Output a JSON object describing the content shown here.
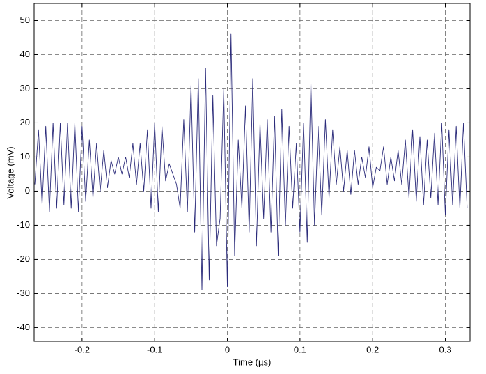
{
  "chart_data": {
    "type": "line",
    "xlabel": "Time (µs)",
    "ylabel": "Voltage (mV)",
    "x": [
      -0.265,
      -0.26,
      -0.255,
      -0.25,
      -0.245,
      -0.24,
      -0.235,
      -0.23,
      -0.225,
      -0.22,
      -0.215,
      -0.21,
      -0.205,
      -0.2,
      -0.195,
      -0.19,
      -0.185,
      -0.18,
      -0.175,
      -0.17,
      -0.165,
      -0.16,
      -0.155,
      -0.15,
      -0.145,
      -0.14,
      -0.135,
      -0.13,
      -0.125,
      -0.12,
      -0.115,
      -0.11,
      -0.105,
      -0.1,
      -0.095,
      -0.09,
      -0.085,
      -0.08,
      -0.075,
      -0.07,
      -0.065,
      -0.06,
      -0.055,
      -0.05,
      -0.045,
      -0.04,
      -0.035,
      -0.03,
      -0.025,
      -0.02,
      -0.015,
      -0.01,
      -0.005,
      0,
      0.005,
      0.01,
      0.015,
      0.02,
      0.025,
      0.03,
      0.035,
      0.04,
      0.045,
      0.05,
      0.055,
      0.06,
      0.065,
      0.07,
      0.075,
      0.08,
      0.085,
      0.09,
      0.095,
      0.1,
      0.105,
      0.11,
      0.115,
      0.12,
      0.125,
      0.13,
      0.135,
      0.14,
      0.145,
      0.15,
      0.155,
      0.16,
      0.165,
      0.17,
      0.175,
      0.18,
      0.185,
      0.19,
      0.195,
      0.2,
      0.205,
      0.21,
      0.215,
      0.22,
      0.225,
      0.23,
      0.235,
      0.24,
      0.245,
      0.25,
      0.255,
      0.26,
      0.265,
      0.27,
      0.275,
      0.28,
      0.285,
      0.29,
      0.295,
      0.3,
      0.305,
      0.31,
      0.315,
      0.32,
      0.325,
      0.33
    ],
    "series": [
      {
        "name": "Voltage",
        "color": "#2b2b7a",
        "values": [
          2,
          18,
          -4,
          19,
          -6,
          20,
          -5,
          20,
          -4,
          20,
          -5,
          20,
          -6,
          19,
          -3,
          15,
          -2,
          14,
          0,
          12,
          1,
          9,
          5,
          10,
          5,
          10,
          4,
          14,
          2,
          14,
          0,
          18,
          -5,
          20,
          -6,
          19,
          3,
          8,
          5,
          2,
          -5,
          21,
          -6,
          31,
          -12,
          33,
          -29,
          36,
          -26,
          28,
          -16,
          -8,
          30,
          -28,
          46,
          -19,
          15,
          -5,
          25,
          -12,
          33,
          -16,
          20,
          -8,
          21,
          -12,
          22,
          -19,
          24,
          -10,
          19,
          -5,
          14,
          -12,
          20,
          -15,
          32,
          -10,
          19,
          -7,
          21,
          -2,
          18,
          2,
          13,
          0,
          12,
          -1,
          12,
          2,
          10,
          4,
          13,
          1,
          7,
          6,
          13,
          2,
          10,
          3,
          12,
          2,
          15,
          -2,
          18,
          -3,
          16,
          -4,
          15,
          -2,
          17,
          -4,
          20,
          -7,
          18,
          -4,
          19,
          -5,
          20,
          -5
        ]
      }
    ],
    "xlim": [
      -0.266,
      0.334
    ],
    "xticks": [
      -0.2,
      -0.1,
      0,
      0.1,
      0.2,
      0.3
    ],
    "ylim": [
      -44,
      55
    ],
    "yticks": [
      -40,
      -30,
      -20,
      -10,
      0,
      10,
      20,
      30,
      40,
      50
    ],
    "grid": true
  }
}
